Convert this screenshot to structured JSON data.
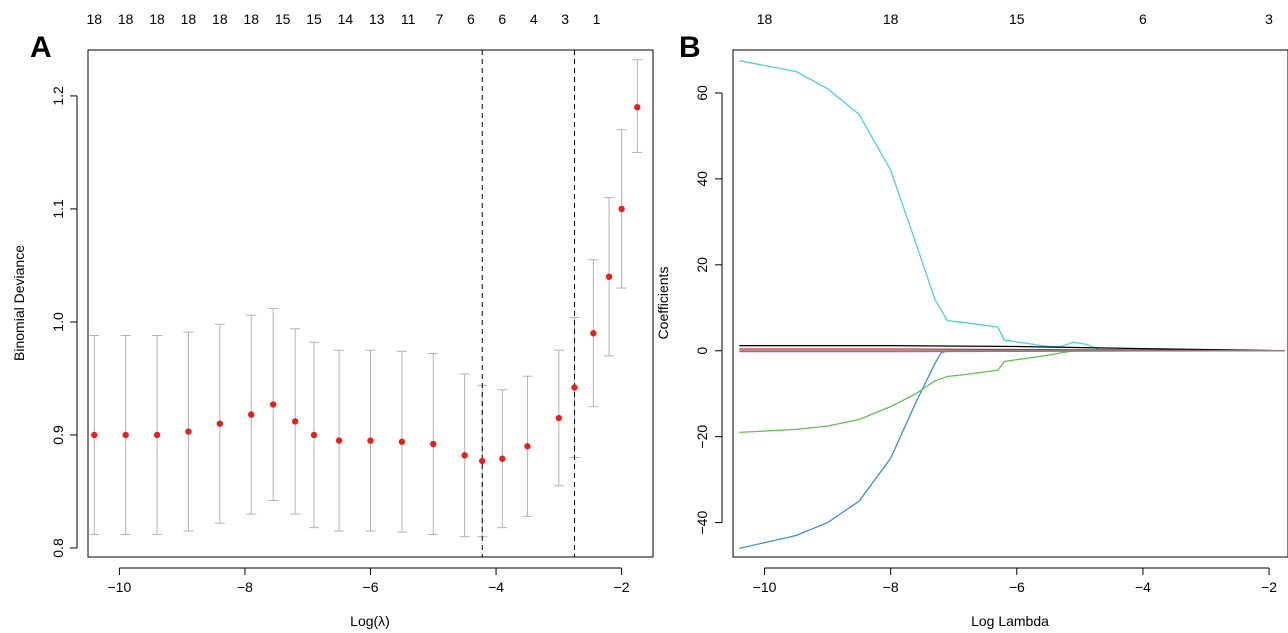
{
  "chart_data": [
    {
      "panel_label": "A",
      "type": "scatter",
      "xlabel": "Log(λ)",
      "ylabel": "Binomial Deviance",
      "xlim": [
        -10.5,
        -1.5
      ],
      "ylim": [
        0.8,
        1.23
      ],
      "x_ticks": [
        -10,
        -8,
        -6,
        -4,
        -2
      ],
      "y_ticks": [
        0.8,
        0.9,
        1.0,
        1.1,
        1.2
      ],
      "x_tick_labels": [
        "−10",
        "−8",
        "−6",
        "−4",
        "−2"
      ],
      "y_tick_labels": [
        "0.8",
        "0.9",
        "1.0",
        "1.1",
        "1.2"
      ],
      "top_axis": {
        "x": [
          -10.4,
          -9.9,
          -9.4,
          -8.9,
          -8.4,
          -7.9,
          -7.4,
          -6.9,
          -6.4,
          -5.9,
          -5.4,
          -4.9,
          -4.4,
          -3.9,
          -3.4,
          -2.9,
          -2.4,
          -1.9
        ],
        "labels": [
          "18",
          "18",
          "18",
          "18",
          "18",
          "18",
          "15",
          "15",
          "14",
          "13",
          "11",
          "7",
          "6",
          "6",
          "4",
          "3",
          "1",
          ""
        ]
      },
      "vlines": [
        -4.22,
        -2.75
      ],
      "points": {
        "x": [
          -10.4,
          -9.9,
          -9.4,
          -8.9,
          -8.4,
          -7.9,
          -7.55,
          -7.2,
          -6.9,
          -6.5,
          -6.0,
          -5.5,
          -5.0,
          -4.5,
          -4.22,
          -3.9,
          -3.5,
          -3.0,
          -2.75,
          -2.45,
          -2.2,
          -2.0,
          -1.75
        ],
        "y": [
          0.9,
          0.9,
          0.9,
          0.903,
          0.91,
          0.918,
          0.927,
          0.912,
          0.9,
          0.895,
          0.895,
          0.894,
          0.892,
          0.882,
          0.877,
          0.879,
          0.89,
          0.915,
          0.942,
          0.99,
          1.04,
          1.1,
          1.19
        ],
        "lower": [
          0.812,
          0.812,
          0.812,
          0.815,
          0.822,
          0.83,
          0.842,
          0.83,
          0.818,
          0.815,
          0.815,
          0.814,
          0.812,
          0.81,
          0.81,
          0.818,
          0.828,
          0.855,
          0.88,
          0.925,
          0.97,
          1.03,
          1.15
        ],
        "upper": [
          0.988,
          0.988,
          0.988,
          0.991,
          0.998,
          1.006,
          1.012,
          0.994,
          0.982,
          0.975,
          0.975,
          0.974,
          0.972,
          0.954,
          0.944,
          0.94,
          0.952,
          0.975,
          1.004,
          1.055,
          1.11,
          1.17,
          1.232
        ]
      },
      "colors": {
        "point": "#e8201a",
        "errorbar": "#b3b3b3",
        "vline": "#000000",
        "axis": "#000000"
      }
    },
    {
      "panel_label": "B",
      "type": "line",
      "xlabel": "Log Lambda",
      "ylabel": "Coefficients",
      "xlim": [
        -10.5,
        -1.7
      ],
      "ylim": [
        -48,
        70
      ],
      "x_ticks": [
        -10,
        -8,
        -6,
        -4,
        -2
      ],
      "y_ticks": [
        -40,
        -20,
        0,
        20,
        40,
        60
      ],
      "x_tick_labels": [
        "−10",
        "−8",
        "−6",
        "−4",
        "−2"
      ],
      "y_tick_labels": [
        "−40",
        "−20",
        "0",
        "20",
        "40",
        "60"
      ],
      "top_axis": {
        "x": [
          -10.0,
          -8.0,
          -6.0,
          -4.0,
          -2.0
        ],
        "labels": [
          "18",
          "18",
          "15",
          "6",
          "3"
        ]
      },
      "series": [
        {
          "color": "#4dd0e1",
          "x": [
            -10.4,
            -9.5,
            -9.0,
            -8.5,
            -8.0,
            -7.6,
            -7.3,
            -7.1,
            -6.8,
            -6.3,
            -6.2,
            -5.5,
            -5.3,
            -5.1,
            -4.9,
            -4.7,
            -1.75
          ],
          "y": [
            67.5,
            65,
            61,
            55,
            42,
            25,
            12,
            7,
            6.5,
            5.5,
            2.5,
            1,
            1,
            2,
            1.5,
            0.3,
            0
          ]
        },
        {
          "color": "#3f8fd1",
          "x": [
            -10.4,
            -9.5,
            -9.0,
            -8.5,
            -8.0,
            -7.6,
            -7.3,
            -7.2,
            -7.1,
            -1.75
          ],
          "y": [
            -46,
            -43,
            -40,
            -35,
            -25,
            -12,
            -3,
            -0.5,
            0,
            0
          ]
        },
        {
          "color": "#63c050",
          "x": [
            -10.4,
            -9.5,
            -9.0,
            -8.5,
            -8.0,
            -7.6,
            -7.3,
            -7.1,
            -6.8,
            -6.3,
            -6.2,
            -5.5,
            -5.3,
            -5.1,
            -1.75
          ],
          "y": [
            -19,
            -18.3,
            -17.5,
            -16,
            -13,
            -10,
            -7,
            -6,
            -5.5,
            -4.5,
            -2.5,
            -1,
            -0.5,
            0,
            0
          ]
        },
        {
          "color": "#000000",
          "x": [
            -10.4,
            -8.0,
            -6.0,
            -4.0,
            -1.75
          ],
          "y": [
            1.2,
            1.2,
            1.0,
            0.5,
            0
          ]
        },
        {
          "color": "#d63fb0",
          "x": [
            -10.4,
            -8.0,
            -6.0,
            -4.0,
            -1.75
          ],
          "y": [
            -0.2,
            -0.2,
            -0.15,
            -0.05,
            0
          ]
        },
        {
          "color": "#e8201a",
          "x": [
            -10.4,
            -8.0,
            -6.0,
            -4.0,
            -1.75
          ],
          "y": [
            0.4,
            0.4,
            0.3,
            0.15,
            0
          ]
        },
        {
          "color": "#888888",
          "x": [
            -10.4,
            -8.0,
            -6.0,
            -4.0,
            -1.75
          ],
          "y": [
            0.0,
            0.0,
            0.0,
            0.0,
            0
          ]
        }
      ],
      "colors": {
        "axis": "#000000"
      }
    }
  ]
}
